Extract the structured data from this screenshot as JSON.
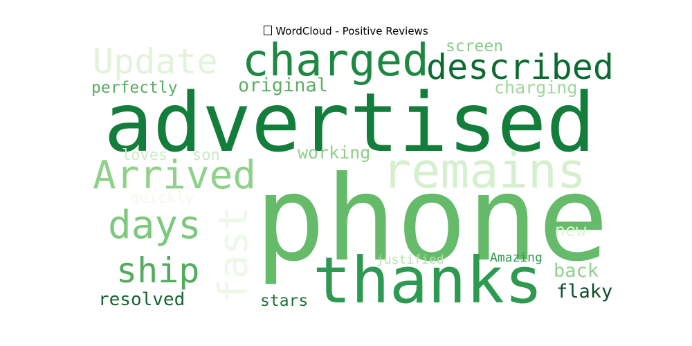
{
  "title": "WordCloud - Positive Reviews",
  "title_icon": "missing-glyph-box",
  "words": [
    {
      "text": "phone",
      "color": "#66bb6a"
    },
    {
      "text": "advertised",
      "color": "#137d3b"
    },
    {
      "text": "thanks",
      "color": "#2e9a51"
    },
    {
      "text": "remains",
      "color": "#d5efcf"
    },
    {
      "text": "charged",
      "color": "#1e8742"
    },
    {
      "text": "described",
      "color": "#0d6b31"
    },
    {
      "text": "Arrived",
      "color": "#8fd18a"
    },
    {
      "text": "Update",
      "color": "#e1f3da"
    },
    {
      "text": "days",
      "color": "#7cc87c"
    },
    {
      "text": "ship",
      "color": "#54aa5f"
    },
    {
      "text": "fast",
      "color": "#eef8ea"
    },
    {
      "text": "original",
      "color": "#58b060"
    },
    {
      "text": "perfectly",
      "color": "#57ac60"
    },
    {
      "text": "screen",
      "color": "#83cc82"
    },
    {
      "text": "charging",
      "color": "#9fd89a"
    },
    {
      "text": "working",
      "color": "#8ecf89"
    },
    {
      "text": "loves",
      "color": "#cdebc6"
    },
    {
      "text": "son",
      "color": "#c7e9c0"
    },
    {
      "text": "quickly",
      "color": "#f1faee"
    },
    {
      "text": "new",
      "color": "#e0f3db"
    },
    {
      "text": "justified",
      "color": "#b6e2ae"
    },
    {
      "text": "Amazing",
      "color": "#2f974e"
    },
    {
      "text": "back",
      "color": "#90d08b"
    },
    {
      "text": "flaky",
      "color": "#0b4d26"
    },
    {
      "text": "resolved",
      "color": "#14652f"
    },
    {
      "text": "stars",
      "color": "#1d6f35"
    }
  ]
}
